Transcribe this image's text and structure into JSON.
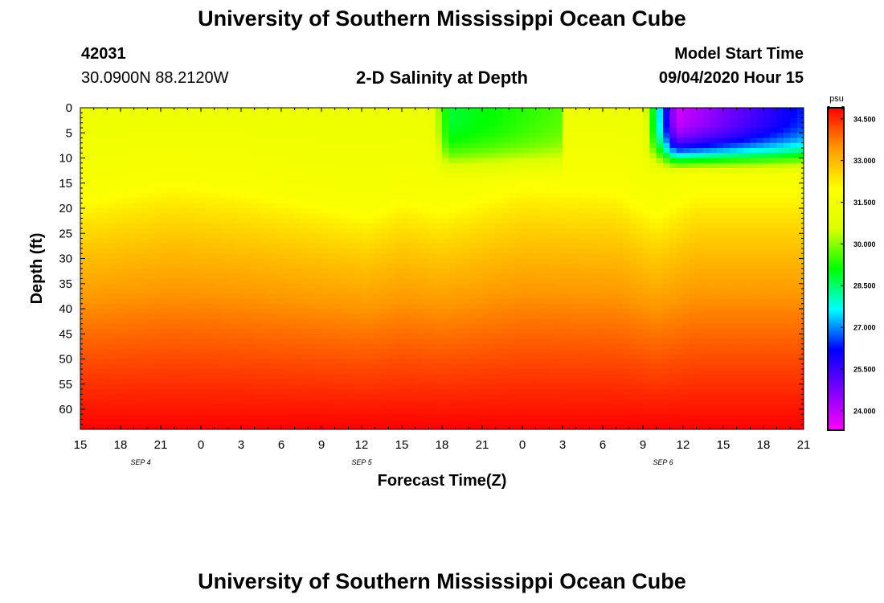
{
  "page": {
    "top_title": "University of Southern Mississippi Ocean Cube",
    "bottom_title": "University of Southern Mississippi Ocean Cube",
    "station_id": "42031",
    "station_coords": "30.0900N 88.2120W",
    "model_start_label": "Model Start Time",
    "model_start_value": "09/04/2020 Hour 15"
  },
  "colors": {
    "scale": [
      "#ff00ff",
      "#7b00ff",
      "#0000ff",
      "#00ffff",
      "#00ff00",
      "#ddff00",
      "#ffff00",
      "#ff9900",
      "#ff0000"
    ]
  },
  "chart_data": {
    "type": "heatmap",
    "title": "2-D Salinity at Depth",
    "xlabel": "Forecast Time(Z)",
    "ylabel": "Depth (ft)",
    "xlim": [
      0,
      54
    ],
    "ylim": [
      0,
      64
    ],
    "x_ticks": [
      0,
      3,
      6,
      9,
      12,
      15,
      18,
      21,
      24,
      27,
      30,
      33,
      36,
      39,
      42,
      45,
      48,
      51,
      54
    ],
    "x_tick_labels": [
      "15",
      "18",
      "21",
      "0",
      "3",
      "6",
      "9",
      "12",
      "15",
      "18",
      "21",
      "0",
      "3",
      "6",
      "9",
      "12",
      "15",
      "18",
      "21"
    ],
    "date_labels": [
      {
        "x": 4.5,
        "label": "SEP 4"
      },
      {
        "x": 21,
        "label": "SEP 5"
      },
      {
        "x": 43.5,
        "label": "SEP 6"
      }
    ],
    "y_ticks": [
      0,
      5,
      10,
      15,
      20,
      25,
      30,
      35,
      40,
      45,
      50,
      55,
      60
    ],
    "colorbar": {
      "unit": "psu",
      "min": 23.3,
      "max": 34.9,
      "tick_values": [
        24.0,
        25.5,
        27.0,
        28.5,
        30.0,
        31.5,
        33.0,
        34.5
      ],
      "tick_labels": [
        "24.000",
        "25.500",
        "27.000",
        "28.500",
        "30.000",
        "31.500",
        "33.000",
        "34.500"
      ]
    },
    "halocline_depth_ft": [
      {
        "x": 0,
        "depth": 17
      },
      {
        "x": 7,
        "depth": 13.5
      },
      {
        "x": 12,
        "depth": 15
      },
      {
        "x": 21.5,
        "depth": 20
      },
      {
        "x": 24,
        "depth": 17
      },
      {
        "x": 27,
        "depth": 19
      },
      {
        "x": 33,
        "depth": 14
      },
      {
        "x": 40,
        "depth": 15
      },
      {
        "x": 43,
        "depth": 20
      },
      {
        "x": 46,
        "depth": 15
      },
      {
        "x": 54,
        "depth": 15
      }
    ],
    "surface_plumes": [
      {
        "x_start": 26.2,
        "x_peak": 27.5,
        "x_end": 36,
        "max_depth_ft": 11,
        "min_salinity": 28.8
      },
      {
        "x_start": 42,
        "x_peak": 44.5,
        "x_end": 54,
        "max_depth_ft": 10,
        "min_salinity": 23.8
      }
    ],
    "deep_salinity_ft64": 34.9
  }
}
